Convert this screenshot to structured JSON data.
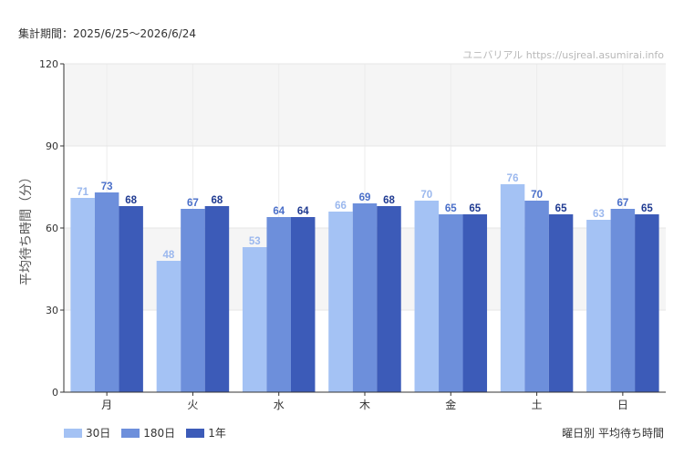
{
  "period_text": "集計期間：2025/6/25〜2026/6/24",
  "watermark": "ユニバリアル  https://usjreal.asumirai.info",
  "caption": "曜日別 平均待ち時間",
  "chart_data": {
    "type": "bar",
    "ylabel": "平均待ち時間（分）",
    "xlabel": "",
    "ylim": [
      0,
      120
    ],
    "yticks": [
      0,
      30,
      60,
      90,
      120
    ],
    "categories": [
      "月",
      "火",
      "水",
      "木",
      "金",
      "土",
      "日"
    ],
    "series": [
      {
        "name": "30日",
        "color": "#a4c2f4",
        "label_color": "#9bb8ee",
        "values": [
          71,
          48,
          53,
          66,
          70,
          76,
          63
        ]
      },
      {
        "name": "180日",
        "color": "#6d8fdb",
        "label_color": "#4a6fc9",
        "values": [
          73,
          67,
          64,
          69,
          65,
          70,
          67
        ]
      },
      {
        "name": "1年",
        "color": "#3c5bb8",
        "label_color": "#1f3a91",
        "values": [
          68,
          68,
          64,
          68,
          65,
          65,
          65
        ]
      }
    ],
    "grid": true,
    "legend": "bottom-left",
    "band_color": "#f5f5f5"
  }
}
